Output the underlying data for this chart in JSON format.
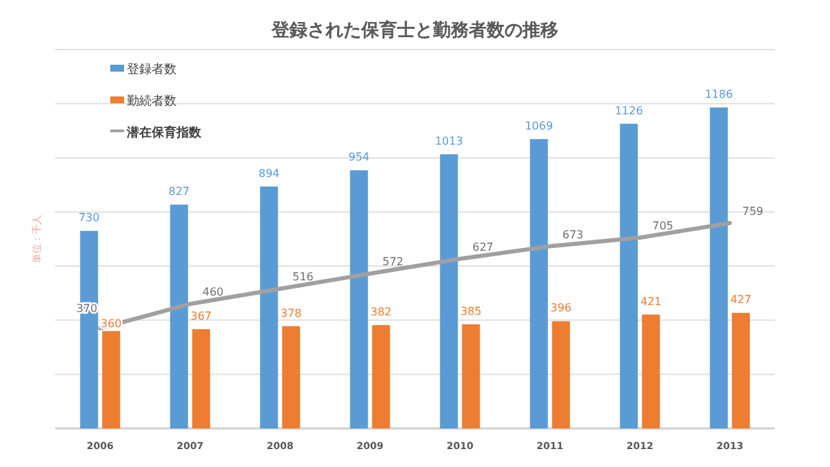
{
  "chart_data": {
    "type": "bar",
    "title": "登録された保育士と勤務者数の推移",
    "ylabel": "単位：千人",
    "categories": [
      "2006",
      "2007",
      "2008",
      "2009",
      "2010",
      "2011",
      "2012",
      "2013"
    ],
    "series": [
      {
        "name": "登録者数",
        "color": "#5b9bd5",
        "values": [
          730,
          827,
          894,
          954,
          1013,
          1069,
          1126,
          1186
        ]
      },
      {
        "name": "勤続者数",
        "color": "#ed7d31",
        "values": [
          360,
          367,
          378,
          382,
          385,
          396,
          421,
          427
        ]
      },
      {
        "name": "潜在保育指数",
        "type": "line",
        "color": "#a0a0a0",
        "values": [
          370,
          460,
          516,
          572,
          627,
          673,
          705,
          759
        ]
      }
    ],
    "ylim": [
      0,
      1400
    ],
    "yticks": [
      {
        "value": 0,
        "label": null
      },
      {
        "value": 200,
        "label": null
      },
      {
        "value": 400,
        "label": null
      },
      {
        "value": 600,
        "label": null
      },
      {
        "value": 800,
        "label": null
      },
      {
        "value": 1000,
        "label": null
      },
      {
        "value": 1200,
        "label": null
      },
      {
        "value": 1400,
        "label": null
      }
    ],
    "tick_labels": "x",
    "grid": "y",
    "legend": "top left",
    "data_labels": true
  }
}
